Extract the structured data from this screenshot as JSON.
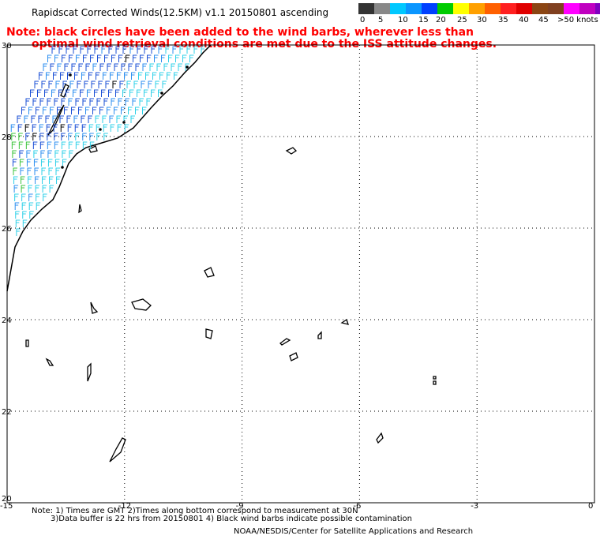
{
  "title": "Rapidscat Corrected Winds(12.5KM) v1.1 20150801 ascending",
  "note": {
    "line1": "Note: black circles have been added to the wind barbs, wherever less than",
    "line2": "optimal wind retrieval conditions are met due to the ISS attitude changes."
  },
  "legend": {
    "colors": [
      "#333333",
      "#888888",
      "#00c8ff",
      "#0a96ff",
      "#0040ff",
      "#00cc00",
      "#ffff00",
      "#ffa000",
      "#ff6000",
      "#ff2020",
      "#e00000",
      "#8b4513",
      "#804020",
      "#ff00ff",
      "#c000c0",
      "#8000c0",
      "#400080"
    ],
    "labels": [
      "0",
      "5",
      "10",
      "15",
      "20",
      "25",
      "30",
      "35",
      "40",
      "45",
      ">50 knots"
    ]
  },
  "map": {
    "y_ticks": [
      "30",
      "28",
      "26",
      "24",
      "22",
      "20"
    ],
    "x_ticks": [
      "-15",
      "-12",
      "-9",
      "-6",
      "-3",
      "0"
    ],
    "wind_colors": {
      "blue": "#1a4fd6",
      "mid": "#2d8ff0",
      "cyan": "#2fd0e8",
      "green": "#3cc43c",
      "black": "#000000"
    }
  },
  "footer": {
    "line1": "Note: 1) Times are GMT 2)Times along bottom correspond to measurement at 30N",
    "line2": "3)Data buffer is 22 hrs from 20150801 4) Black wind barbs indicate possible contamination",
    "line3": "NOAA/NESDIS/Center for Satellite Applications and Research"
  }
}
